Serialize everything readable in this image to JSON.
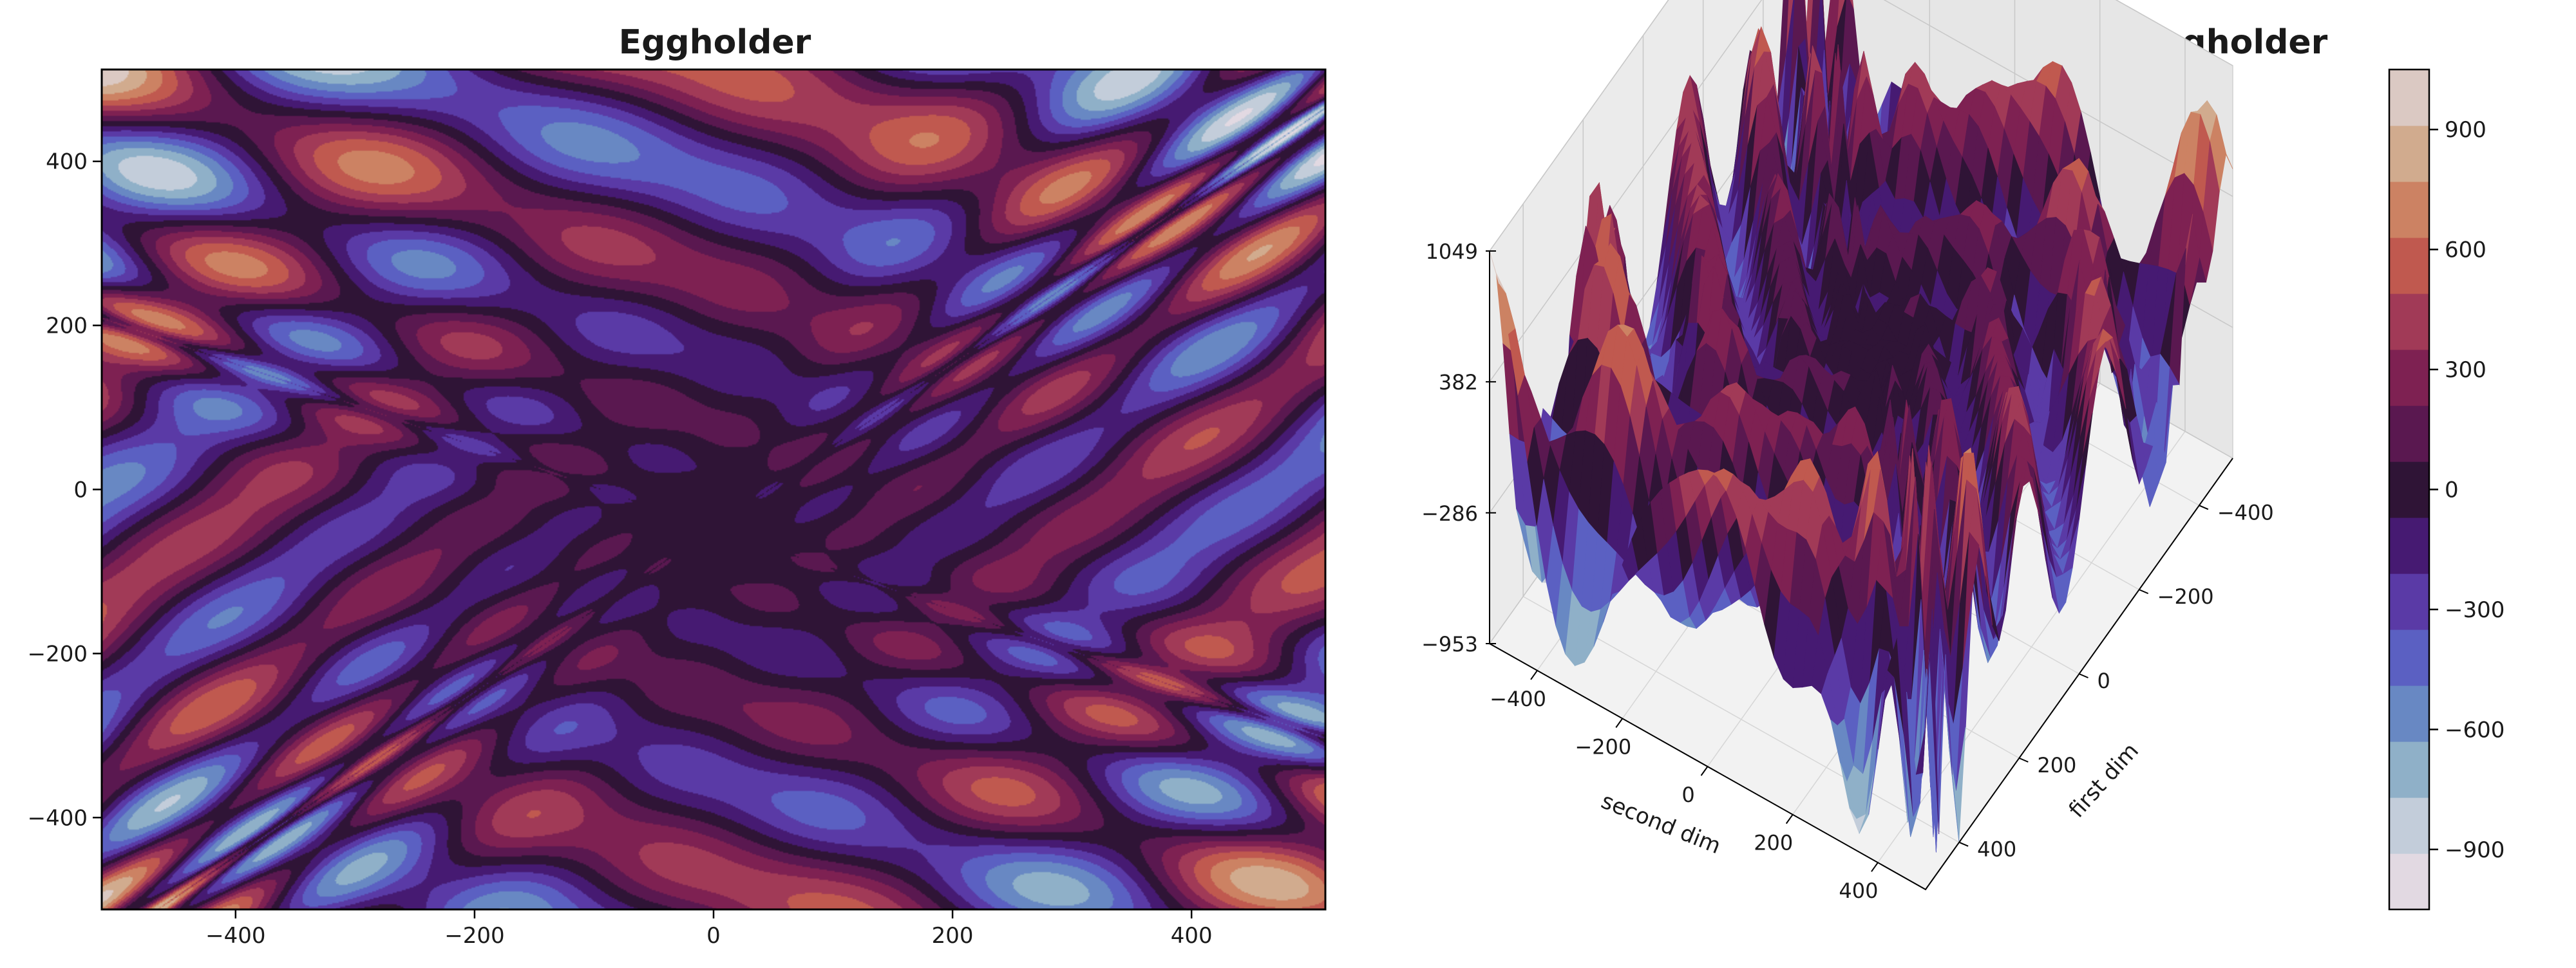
{
  "figure": {
    "title_left": "Eggholder",
    "title_right": "Eggholder"
  },
  "chart_data": [
    {
      "type": "heatmap",
      "subtype": "filled-contour",
      "title": "Eggholder",
      "function": "eggholder",
      "domain": [
        -512,
        512
      ],
      "x_ticks": [
        -400,
        -200,
        0,
        200,
        400
      ],
      "y_ticks": [
        -400,
        -200,
        0,
        200,
        400
      ],
      "x_tick_labels": [
        "−400",
        "−200",
        "0",
        "200",
        "400"
      ],
      "y_tick_labels": [
        "−400",
        "−200",
        "0",
        "200",
        "400"
      ],
      "xlim": [
        -512,
        512
      ],
      "ylim": [
        -512,
        512
      ],
      "colormap": "twilight_shifted",
      "levels": 16,
      "grid": false
    },
    {
      "type": "surface3d",
      "title": "Eggholder",
      "function": "eggholder",
      "xlabel": "first dim",
      "ylabel": "second dim",
      "x_ticks": [
        -400,
        -200,
        0,
        200,
        400
      ],
      "y_ticks": [
        -400,
        -200,
        0,
        200,
        400
      ],
      "x_tick_labels": [
        "−400",
        "−200",
        "0",
        "200",
        "400"
      ],
      "y_tick_labels": [
        "−400",
        "−200",
        "0",
        "200",
        "400"
      ],
      "z_ticks": [
        -953,
        -286,
        382,
        1049
      ],
      "z_tick_labels": [
        "−953",
        "−286",
        "382",
        "1049"
      ],
      "zlim": [
        -953,
        1049
      ],
      "colormap": "twilight_shifted",
      "grid": true
    }
  ],
  "colorbar": {
    "range": [
      -1050,
      1050
    ],
    "ticks": [
      -900,
      -600,
      -300,
      0,
      300,
      600,
      900
    ],
    "tick_labels": [
      "−900",
      "−600",
      "−300",
      "0",
      "300",
      "600",
      "900"
    ],
    "band_colors": [
      "#e2d9e2",
      "#c3cdda",
      "#8fb0c8",
      "#6888c3",
      "#5b60c2",
      "#5a3aa6",
      "#461a72",
      "#2f1436",
      "#5a1850",
      "#7e2152",
      "#a13a57",
      "#c0594f",
      "#cc8263",
      "#d1ab8e",
      "#dbc9c3"
    ]
  }
}
